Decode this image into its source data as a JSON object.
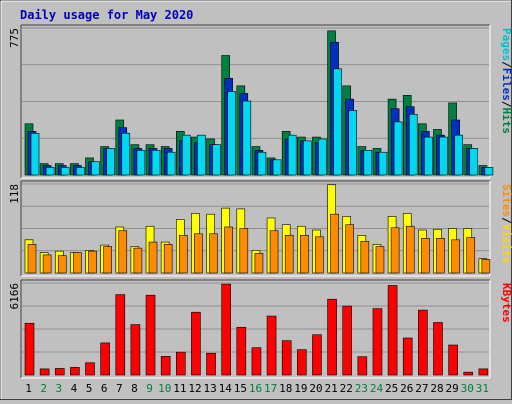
{
  "chart_data": {
    "title": "Daily usage for May 2020",
    "categories": [
      "1",
      "2",
      "3",
      "4",
      "5",
      "6",
      "7",
      "8",
      "9",
      "10",
      "11",
      "12",
      "13",
      "14",
      "15",
      "16",
      "17",
      "18",
      "19",
      "20",
      "21",
      "22",
      "23",
      "24",
      "25",
      "26",
      "27",
      "28",
      "29",
      "30",
      "31"
    ],
    "weekend_days": [
      "2",
      "3",
      "9",
      "10",
      "16",
      "17",
      "23",
      "24",
      "30",
      "31"
    ],
    "panels": [
      {
        "type": "bar",
        "max_label": "775",
        "ymax": 775,
        "legend": [
          "Pages",
          "/",
          "Files",
          "/",
          "Hits"
        ],
        "legend_colors": [
          "#00c0d0",
          "#000000",
          "#0030c0",
          "#000000",
          "#008040"
        ],
        "series": [
          {
            "name": "Hits",
            "color": "#008040",
            "values": [
              270,
              60,
              60,
              60,
              90,
              150,
              290,
              160,
              160,
              150,
              230,
              200,
              190,
              630,
              470,
              150,
              90,
              230,
              200,
              200,
              760,
              470,
              150,
              140,
              400,
              420,
              270,
              240,
              380,
              160,
              50
            ]
          },
          {
            "name": "Files",
            "color": "#0030c0",
            "values": [
              230,
              50,
              50,
              50,
              70,
              140,
              250,
              140,
              140,
              140,
              180,
              170,
              160,
              510,
              430,
              130,
              80,
              190,
              180,
              170,
              700,
              400,
              130,
              120,
              350,
              360,
              230,
              210,
              290,
              140,
              40
            ]
          },
          {
            "name": "Pages",
            "color": "#00d8f0",
            "values": [
              220,
              40,
              40,
              40,
              70,
              140,
              220,
              130,
              130,
              120,
              210,
              210,
              160,
              440,
              390,
              120,
              80,
              210,
              180,
              190,
              560,
              340,
              130,
              120,
              280,
              320,
              200,
              200,
              210,
              140,
              40
            ]
          }
        ]
      },
      {
        "type": "bar",
        "max_label": "118",
        "ymax": 118,
        "legend": [
          "Sites",
          "/",
          "Visits"
        ],
        "legend_colors": [
          "#ff8c00",
          "#000000",
          "#ffd800"
        ],
        "series": [
          {
            "name": "Visits",
            "color": "#ffff00",
            "values": [
              44,
              27,
              29,
              27,
              30,
              37,
              61,
              35,
              62,
              41,
              71,
              79,
              78,
              86,
              85,
              30,
              73,
              64,
              62,
              57,
              117,
              75,
              50,
              38,
              75,
              79,
              57,
              58,
              59,
              59,
              19
            ]
          },
          {
            "name": "Sites",
            "color": "#ff8c00",
            "values": [
              38,
              24,
              23,
              27,
              29,
              35,
              56,
              33,
              41,
              38,
              50,
              52,
              52,
              61,
              59,
              26,
              56,
              50,
              50,
              48,
              78,
              64,
              42,
              35,
              60,
              62,
              46,
              46,
              44,
              47,
              18
            ]
          }
        ]
      },
      {
        "type": "bar",
        "max_label": "6166",
        "ymax": 6166,
        "legend": [
          "KBytes"
        ],
        "legend_colors": [
          "#ff0000"
        ],
        "series": [
          {
            "name": "KBytes",
            "color": "#ff0000",
            "values": [
              3470,
              410,
              440,
              510,
              820,
              2150,
              5390,
              3380,
              5350,
              1250,
              1530,
              4210,
              1460,
              6090,
              3200,
              1830,
              3950,
              2300,
              1700,
              2700,
              5080,
              4620,
              1230,
              4450,
              6000,
              2480,
              4350,
              3520,
              2010,
              190,
              410
            ]
          }
        ]
      }
    ]
  }
}
